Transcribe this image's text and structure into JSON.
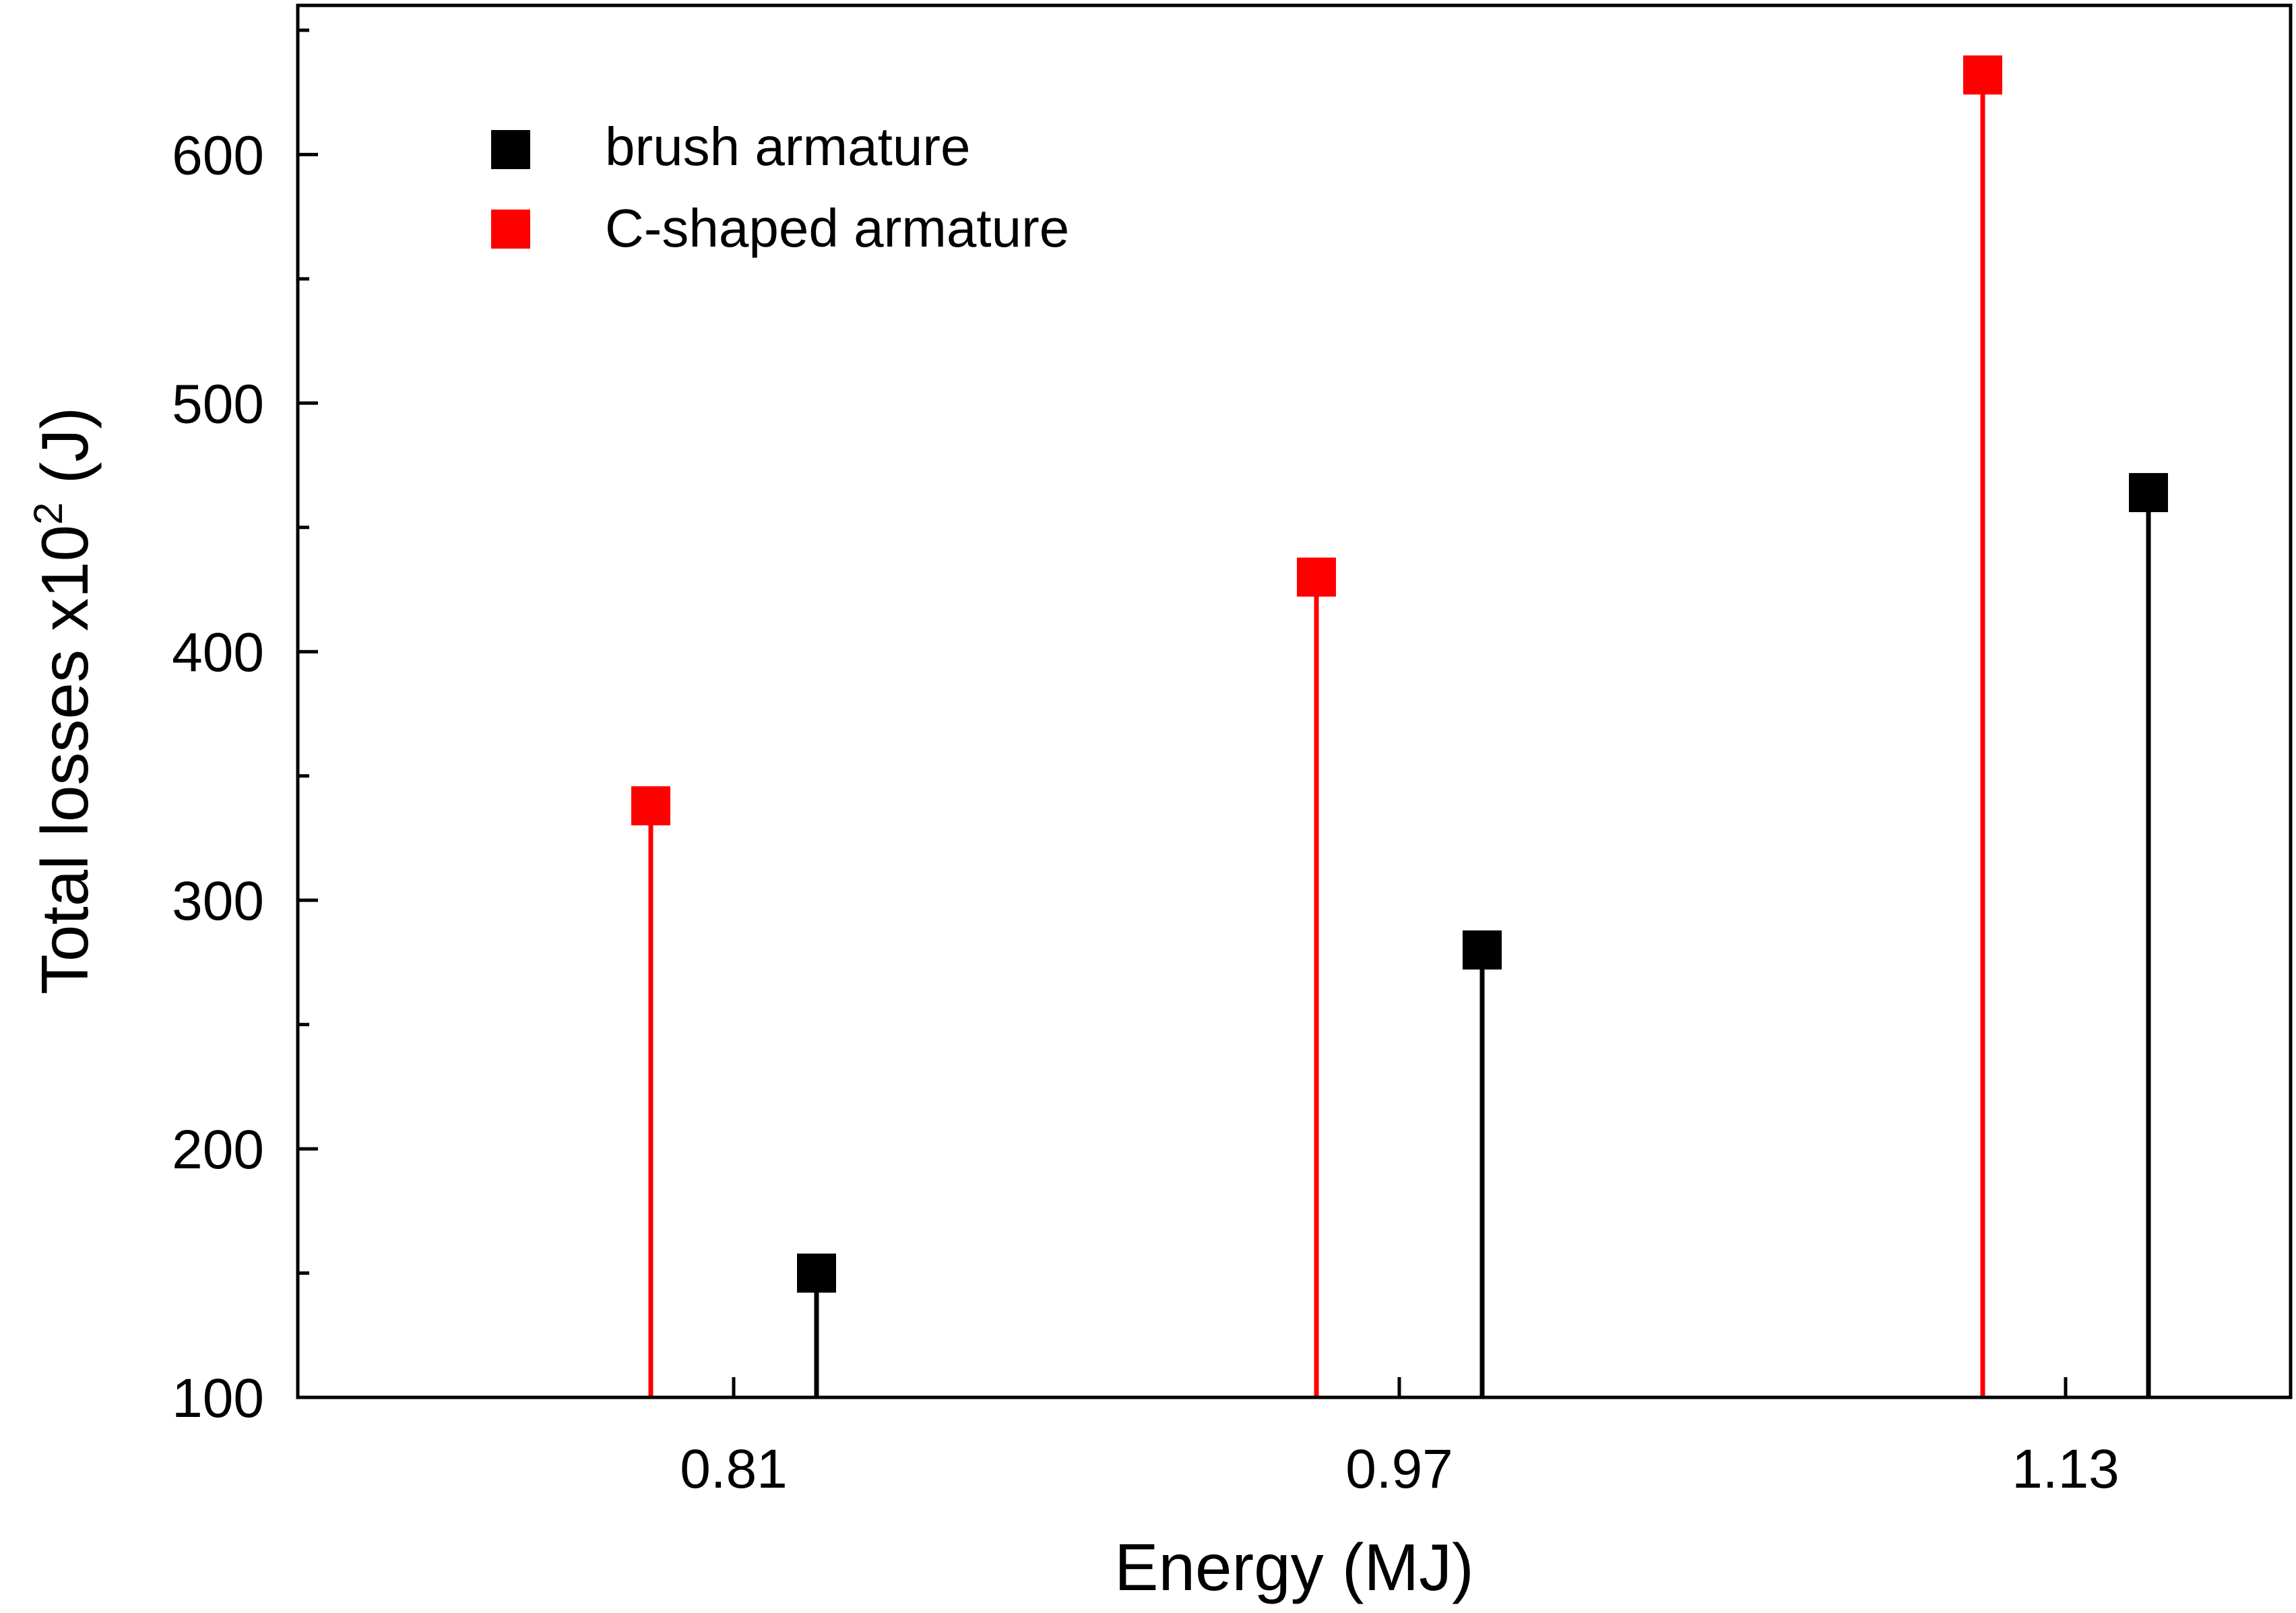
{
  "chart_data": {
    "type": "scatter",
    "subtype": "drop-line",
    "categories": [
      "0.81",
      "0.97",
      "1.13"
    ],
    "series": [
      {
        "name": "brush armature",
        "color": "#000000",
        "values": [
          150,
          280,
          464
        ]
      },
      {
        "name": "C-shaped armature",
        "color": "#ff0000",
        "values": [
          338,
          430,
          632
        ]
      }
    ],
    "xlabel": "Energy (MJ)",
    "ylabel": {
      "main": "Total losses x10",
      "superscript": "2",
      "unit": " (J)"
    },
    "ylim": [
      100,
      660
    ],
    "yticks": [
      100,
      200,
      300,
      400,
      500,
      600
    ],
    "legend_position": "top-left",
    "grid": false
  }
}
